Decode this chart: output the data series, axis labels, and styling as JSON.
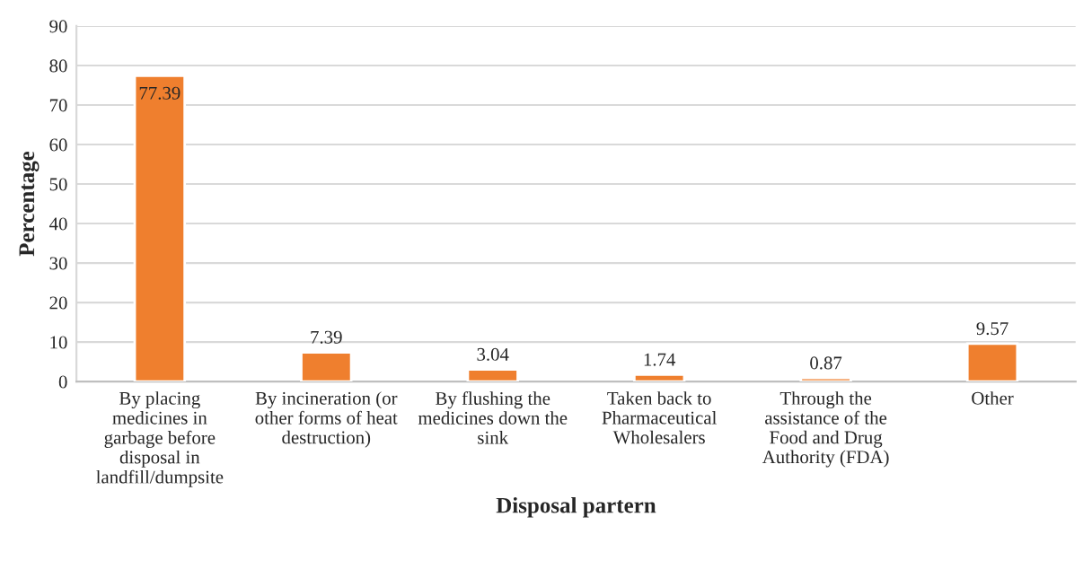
{
  "chart_data": {
    "type": "bar",
    "xlabel": "Disposal partern",
    "ylabel": "Percentage",
    "categories": [
      "By placing\nmedicines in\ngarbage before\ndisposal in\nlandfill/dumpsite",
      "By incineration (or\nother forms of heat\ndestruction)",
      "By flushing the\nmedicines down the\nsink",
      "Taken back to\nPharmaceutical\nWholesalers",
      "Through the\nassistance of the\nFood and Drug\nAuthority (FDA)",
      "Other"
    ],
    "values": [
      77.39,
      7.39,
      3.04,
      1.74,
      0.87,
      9.57
    ],
    "color": "#ef7f2e",
    "ylim": [
      0,
      90
    ],
    "yticks": [
      0,
      10,
      20,
      30,
      40,
      50,
      60,
      70,
      80,
      90
    ],
    "grid": "y",
    "data_labels": true
  }
}
